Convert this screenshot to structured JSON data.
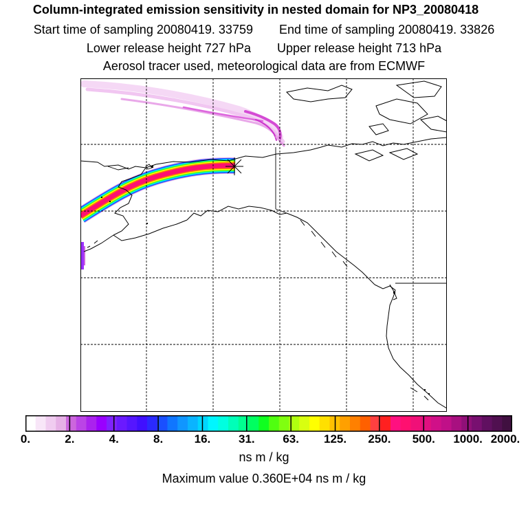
{
  "title": {
    "line1": "Column-integrated emission sensitivity in nested domain for NP3_20080418",
    "start_label": "Start time of sampling 20080419. 33759",
    "end_label": "End time of sampling 20080419. 33826",
    "lower_label": "Lower release height  727 hPa",
    "upper_label": "Upper release height  713 hPa",
    "line4": "Aerosol tracer used, meteorological data are from ECMWF"
  },
  "map": {
    "release_marker": "asterisk-marker",
    "colors": {
      "frame": "#000000",
      "coast": "#000000",
      "grid": "#000000",
      "plume_light": "#f2c8f2",
      "plume_mid": "#dd55dd"
    }
  },
  "colorbar": {
    "labels": [
      "0.",
      "2.",
      "4.",
      "8.",
      "16.",
      "31.",
      "63.",
      "125.",
      "250.",
      "500.",
      "1000.",
      "2000."
    ],
    "colors": [
      "#ffffff",
      "#f8e6f8",
      "#f0ccf0",
      "#e6b0e6",
      "#cc66dd",
      "#bb44e6",
      "#aa22ee",
      "#9900ff",
      "#7f22ff",
      "#6a1aff",
      "#5516ff",
      "#4010ff",
      "#2a2aff",
      "#1a50ff",
      "#1076ff",
      "#1096ff",
      "#0ab4ff",
      "#00d6ff",
      "#00f6ff",
      "#00ffe0",
      "#00ffb8",
      "#00ff90",
      "#00ff60",
      "#10ff20",
      "#50ff10",
      "#80ff10",
      "#b0ff10",
      "#d8ff10",
      "#ffff00",
      "#ffe000",
      "#ffc000",
      "#ffa000",
      "#ff8000",
      "#ff6000",
      "#ff4040",
      "#ff2020",
      "#ff1080",
      "#ff1070",
      "#f01078",
      "#e01080",
      "#d01088",
      "#c01088",
      "#a81080",
      "#901078",
      "#781070",
      "#601060",
      "#501050",
      "#401040"
    ]
  },
  "unit": "ns m / kg",
  "max_value": "Maximum value  0.360E+04 ns m / kg"
}
